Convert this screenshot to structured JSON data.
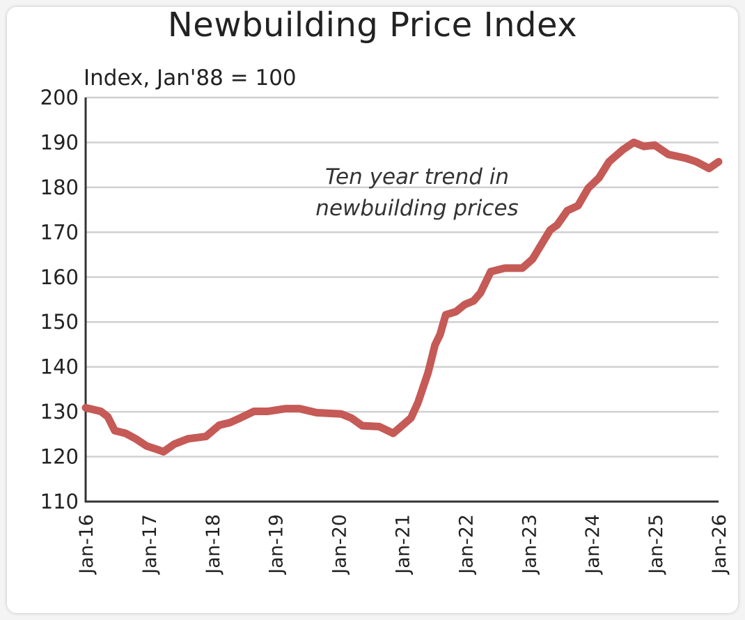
{
  "chart_data": {
    "type": "line",
    "title": "Newbuilding Price Index",
    "ylabel": "Index, Jan'88 = 100",
    "xlabel": "",
    "annotation": "Ten year trend in newbuilding prices",
    "annotation_lines": [
      "Ten year trend in",
      "newbuilding prices"
    ],
    "ylim": [
      110,
      200
    ],
    "xlim": [
      2016,
      2026
    ],
    "yticks": [
      110,
      120,
      130,
      140,
      150,
      160,
      170,
      180,
      190,
      200
    ],
    "ytick_labels": [
      "110",
      "120",
      "130",
      "140",
      "150",
      "160",
      "170",
      "180",
      "190",
      "200"
    ],
    "xticks": [
      2016,
      2017,
      2018,
      2019,
      2020,
      2021,
      2022,
      2023,
      2024,
      2025,
      2026
    ],
    "xtick_labels": [
      "Jan-16",
      "Jan-17",
      "Jan-18",
      "Jan-19",
      "Jan-20",
      "Jan-21",
      "Jan-22",
      "Jan-23",
      "Jan-24",
      "Jan-25",
      "Jan-26"
    ],
    "grid": true,
    "legend": "none",
    "series": [
      {
        "name": "Newbuilding Price Index",
        "color": "#c55a56",
        "x": [
          2016.0,
          2016.24,
          2016.35,
          2016.46,
          2016.63,
          2016.79,
          2016.96,
          2017.13,
          2017.23,
          2017.4,
          2017.62,
          2017.9,
          2018.11,
          2018.28,
          2018.44,
          2018.66,
          2018.88,
          2019.16,
          2019.38,
          2019.65,
          2020.04,
          2020.2,
          2020.37,
          2020.64,
          2020.86,
          2021.14,
          2021.25,
          2021.41,
          2021.52,
          2021.6,
          2021.69,
          2021.85,
          2021.99,
          2022.13,
          2022.24,
          2022.4,
          2022.62,
          2022.9,
          2023.06,
          2023.34,
          2023.45,
          2023.61,
          2023.78,
          2023.94,
          2024.11,
          2024.27,
          2024.49,
          2024.66,
          2024.82,
          2024.99,
          2025.21,
          2025.48,
          2025.65,
          2025.85,
          2026.0
        ],
        "y": [
          130.9,
          130.1,
          128.9,
          125.8,
          125.2,
          124.0,
          122.4,
          121.6,
          121.1,
          122.8,
          124.0,
          124.5,
          127.0,
          127.6,
          128.6,
          130.1,
          130.1,
          130.7,
          130.7,
          129.8,
          129.5,
          128.6,
          126.9,
          126.7,
          125.2,
          128.6,
          132.0,
          138.7,
          144.9,
          147.2,
          151.6,
          152.3,
          153.9,
          154.7,
          156.5,
          161.2,
          162.0,
          162.0,
          164.0,
          170.5,
          171.6,
          174.8,
          175.9,
          179.8,
          182.1,
          185.7,
          188.4,
          190.0,
          189.1,
          189.4,
          187.3,
          186.5,
          185.7,
          184.2,
          185.7
        ]
      }
    ],
    "colors": {
      "line": "#c55a56",
      "grid": "#d0d0d0",
      "axis": "#333333"
    }
  }
}
